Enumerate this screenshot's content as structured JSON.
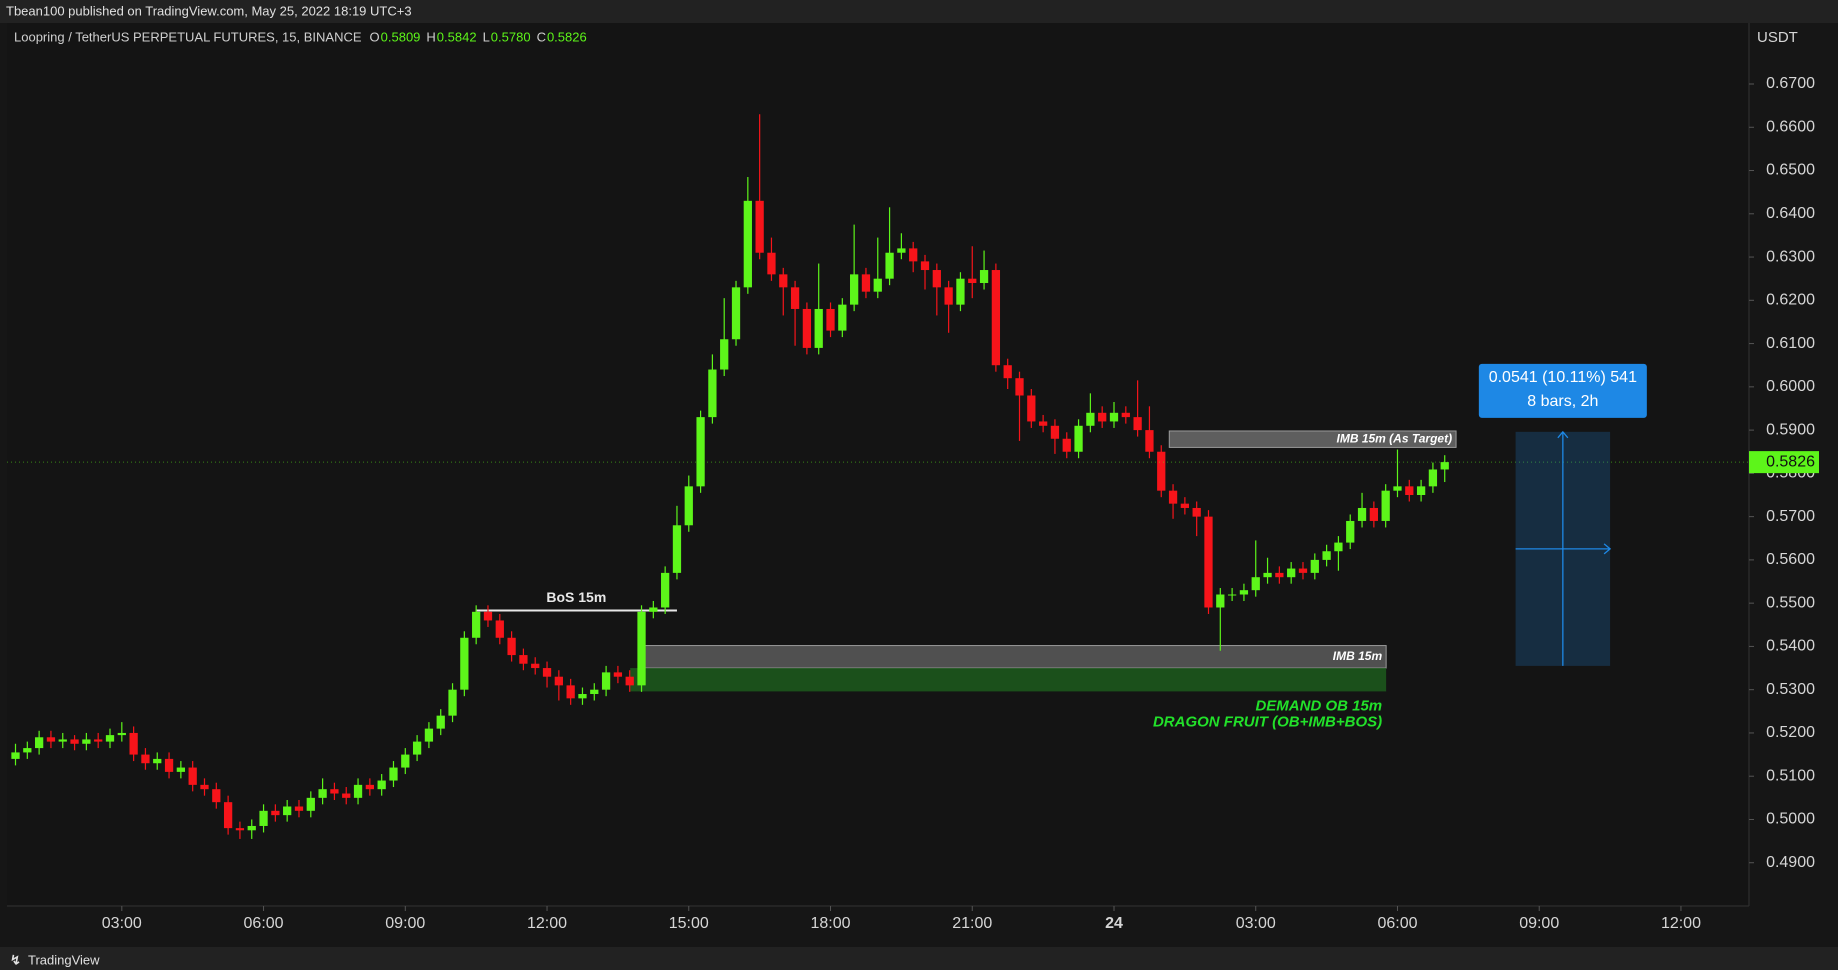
{
  "header": {
    "publish": "Tbean100 published on TradingView.com, May 25, 2022 18:19 UTC+3",
    "symbol": "Loopring / TetherUS PERPETUAL FUTURES, 15, BINANCE",
    "ohlc": [
      {
        "key": "O",
        "value": "0.5809"
      },
      {
        "key": "H",
        "value": "0.5842"
      },
      {
        "key": "L",
        "value": "0.5780"
      },
      {
        "key": "C",
        "value": "0.5826"
      }
    ]
  },
  "footer": {
    "brand": "TradingView"
  },
  "chart_data": {
    "type": "candlestick",
    "y_label": "USDT",
    "up_color": "#5df51a",
    "down_color": "#f7141a",
    "xlim": [
      0.57,
      37.44
    ],
    "ylim": [
      0.48,
      0.6841
    ],
    "xticks": [
      {
        "value": 3,
        "label": "03:00"
      },
      {
        "value": 6,
        "label": "06:00"
      },
      {
        "value": 9,
        "label": "09:00"
      },
      {
        "value": 12,
        "label": "12:00"
      },
      {
        "value": 15,
        "label": "15:00"
      },
      {
        "value": 18,
        "label": "18:00"
      },
      {
        "value": 21,
        "label": "21:00"
      },
      24,
      {
        "value": 27,
        "label": "03:00"
      },
      {
        "value": 30,
        "label": "06:00"
      },
      {
        "value": 33,
        "label": "09:00"
      },
      {
        "value": 36,
        "label": "12:00"
      }
    ],
    "yticks": [
      {
        "value": 0.49,
        "label": "0.4900"
      },
      {
        "value": 0.5,
        "label": "0.5000"
      },
      {
        "value": 0.51,
        "label": "0.5100"
      },
      {
        "value": 0.52,
        "label": "0.5200"
      },
      {
        "value": 0.53,
        "label": "0.5300"
      },
      {
        "value": 0.54,
        "label": "0.5400"
      },
      {
        "value": 0.55,
        "label": "0.5500"
      },
      {
        "value": 0.56,
        "label": "0.5600"
      },
      {
        "value": 0.57,
        "label": "0.5700"
      },
      {
        "value": 0.58,
        "label": "0.5800"
      },
      {
        "value": 0.59,
        "label": "0.5900"
      },
      {
        "value": 0.6,
        "label": "0.6000"
      },
      {
        "value": 0.61,
        "label": "0.6100"
      },
      {
        "value": 0.62,
        "label": "0.6200"
      },
      {
        "value": 0.63,
        "label": "0.6300"
      },
      {
        "value": 0.64,
        "label": "0.6400"
      },
      {
        "value": 0.65,
        "label": "0.6500"
      },
      {
        "value": 0.66,
        "label": "0.6600"
      },
      {
        "value": 0.67,
        "label": "0.6700"
      }
    ],
    "x": [
      0.75,
      1,
      1.25,
      1.5,
      1.75,
      2,
      2.25,
      2.5,
      2.75,
      3,
      3.25,
      3.5,
      3.75,
      4,
      4.25,
      4.5,
      4.75,
      5,
      5.25,
      5.5,
      5.75,
      6,
      6.25,
      6.5,
      6.75,
      7,
      7.25,
      7.5,
      7.75,
      8,
      8.25,
      8.5,
      8.75,
      9,
      9.25,
      9.5,
      9.75,
      10,
      10.25,
      10.5,
      10.75,
      11,
      11.25,
      11.5,
      11.75,
      12,
      12.25,
      12.5,
      12.75,
      13,
      13.25,
      13.5,
      13.75,
      14,
      14.25,
      14.5,
      14.75,
      15,
      15.25,
      15.5,
      15.75,
      16,
      16.25,
      16.5,
      16.75,
      17,
      17.25,
      17.5,
      17.75,
      18,
      18.25,
      18.5,
      18.75,
      19,
      19.25,
      19.5,
      19.75,
      20,
      20.25,
      20.5,
      20.75,
      21,
      21.25,
      21.5,
      21.75,
      22,
      22.25,
      22.5,
      22.75,
      23,
      23.25,
      23.5,
      23.75,
      24,
      24.25,
      24.5,
      24.75,
      25,
      25.25,
      25.5,
      25.75,
      26,
      26.25,
      26.5,
      26.75,
      27,
      27.25,
      27.5,
      27.75,
      28,
      28.25,
      28.5,
      28.75,
      29,
      29.25,
      29.5,
      29.75,
      30,
      30.25,
      30.5,
      30.75,
      31
    ],
    "open": [
      0.514,
      0.5155,
      0.5165,
      0.519,
      0.518,
      0.5185,
      0.5175,
      0.5185,
      0.518,
      0.5195,
      0.52,
      0.515,
      0.513,
      0.514,
      0.511,
      0.512,
      0.508,
      0.507,
      0.504,
      0.498,
      0.4975,
      0.4985,
      0.502,
      0.501,
      0.503,
      0.502,
      0.505,
      0.507,
      0.506,
      0.505,
      0.508,
      0.507,
      0.509,
      0.512,
      0.515,
      0.518,
      0.521,
      0.524,
      0.53,
      0.542,
      0.548,
      0.546,
      0.542,
      0.538,
      0.536,
      0.535,
      0.533,
      0.531,
      0.528,
      0.529,
      0.53,
      0.534,
      0.533,
      0.531,
      0.548,
      0.549,
      0.557,
      0.568,
      0.577,
      0.593,
      0.604,
      0.611,
      0.623,
      0.643,
      0.631,
      0.626,
      0.623,
      0.618,
      0.609,
      0.618,
      0.613,
      0.619,
      0.626,
      0.622,
      0.625,
      0.631,
      0.632,
      0.629,
      0.627,
      0.623,
      0.619,
      0.625,
      0.624,
      0.627,
      0.605,
      0.602,
      0.598,
      0.592,
      0.591,
      0.588,
      0.585,
      0.591,
      0.594,
      0.592,
      0.594,
      0.593,
      0.59,
      0.585,
      0.576,
      0.573,
      0.572,
      0.57,
      0.549,
      0.552,
      0.552,
      0.553,
      0.556,
      0.557,
      0.556,
      0.558,
      0.557,
      0.56,
      0.562,
      0.564,
      0.569,
      0.572,
      0.569,
      0.576,
      0.577,
      0.575,
      0.577,
      0.5809
    ],
    "high": [
      0.5175,
      0.518,
      0.5205,
      0.5205,
      0.52,
      0.5195,
      0.52,
      0.52,
      0.521,
      0.5225,
      0.5215,
      0.5165,
      0.5155,
      0.5155,
      0.5135,
      0.5135,
      0.5095,
      0.5085,
      0.5055,
      0.4995,
      0.5,
      0.5035,
      0.5035,
      0.5045,
      0.5045,
      0.5065,
      0.5095,
      0.5085,
      0.5075,
      0.5095,
      0.5095,
      0.5105,
      0.5135,
      0.5165,
      0.5195,
      0.5225,
      0.5255,
      0.5315,
      0.5435,
      0.5495,
      0.5495,
      0.5475,
      0.5435,
      0.5395,
      0.5375,
      0.5365,
      0.5345,
      0.5325,
      0.5305,
      0.5315,
      0.5355,
      0.5355,
      0.5345,
      0.5495,
      0.5505,
      0.5585,
      0.5725,
      0.5795,
      0.5945,
      0.6075,
      0.6205,
      0.6245,
      0.6485,
      0.663,
      0.6345,
      0.6275,
      0.6245,
      0.6195,
      0.6285,
      0.6195,
      0.6205,
      0.6375,
      0.6275,
      0.6345,
      0.6415,
      0.6355,
      0.6335,
      0.6305,
      0.6285,
      0.6245,
      0.6265,
      0.6325,
      0.6315,
      0.6285,
      0.6065,
      0.6035,
      0.5995,
      0.5935,
      0.5925,
      0.5895,
      0.5925,
      0.5985,
      0.5955,
      0.5965,
      0.5955,
      0.6015,
      0.5955,
      0.5865,
      0.5775,
      0.5745,
      0.5735,
      0.5715,
      0.5535,
      0.5535,
      0.5545,
      0.5645,
      0.5605,
      0.5585,
      0.5595,
      0.5595,
      0.5615,
      0.5635,
      0.5655,
      0.5705,
      0.5755,
      0.5735,
      0.5775,
      0.5855,
      0.5785,
      0.5785,
      0.5825,
      0.5842
    ],
    "low": [
      0.5125,
      0.514,
      0.515,
      0.5165,
      0.5165,
      0.516,
      0.516,
      0.5165,
      0.5165,
      0.518,
      0.5135,
      0.5115,
      0.5115,
      0.5095,
      0.5095,
      0.5065,
      0.5055,
      0.5025,
      0.4965,
      0.4955,
      0.4955,
      0.497,
      0.4995,
      0.4995,
      0.5005,
      0.5005,
      0.5035,
      0.5045,
      0.5035,
      0.5035,
      0.5055,
      0.5055,
      0.5075,
      0.5105,
      0.5135,
      0.5165,
      0.5195,
      0.5225,
      0.5285,
      0.5405,
      0.5445,
      0.5405,
      0.5365,
      0.5345,
      0.5335,
      0.5305,
      0.5275,
      0.5265,
      0.5265,
      0.5275,
      0.5285,
      0.5315,
      0.5295,
      0.5295,
      0.5465,
      0.5475,
      0.5555,
      0.5665,
      0.5755,
      0.5915,
      0.6025,
      0.6095,
      0.6215,
      0.6295,
      0.6245,
      0.6165,
      0.6095,
      0.6075,
      0.6075,
      0.6115,
      0.6115,
      0.6175,
      0.6205,
      0.6205,
      0.6235,
      0.6295,
      0.6265,
      0.6225,
      0.6165,
      0.6125,
      0.6175,
      0.6205,
      0.6225,
      0.6035,
      0.5995,
      0.5875,
      0.5905,
      0.5895,
      0.5845,
      0.5835,
      0.5835,
      0.5895,
      0.5905,
      0.5905,
      0.5915,
      0.5885,
      0.5835,
      0.5745,
      0.5695,
      0.5705,
      0.5655,
      0.5475,
      0.539,
      0.5505,
      0.5505,
      0.5515,
      0.5545,
      0.5545,
      0.5545,
      0.5555,
      0.5555,
      0.5585,
      0.5575,
      0.5625,
      0.5675,
      0.5675,
      0.5675,
      0.5745,
      0.5735,
      0.5735,
      0.5755,
      0.578
    ],
    "close": [
      0.5155,
      0.5165,
      0.519,
      0.518,
      0.5185,
      0.5175,
      0.5185,
      0.518,
      0.5195,
      0.52,
      0.515,
      0.513,
      0.514,
      0.511,
      0.512,
      0.508,
      0.507,
      0.504,
      0.498,
      0.4975,
      0.4985,
      0.502,
      0.501,
      0.503,
      0.502,
      0.505,
      0.507,
      0.506,
      0.505,
      0.508,
      0.507,
      0.509,
      0.512,
      0.515,
      0.518,
      0.521,
      0.524,
      0.53,
      0.542,
      0.548,
      0.546,
      0.542,
      0.538,
      0.536,
      0.535,
      0.533,
      0.531,
      0.528,
      0.529,
      0.53,
      0.534,
      0.533,
      0.531,
      0.548,
      0.549,
      0.557,
      0.568,
      0.577,
      0.593,
      0.604,
      0.611,
      0.623,
      0.643,
      0.631,
      0.626,
      0.623,
      0.618,
      0.609,
      0.618,
      0.613,
      0.619,
      0.626,
      0.622,
      0.625,
      0.631,
      0.632,
      0.629,
      0.627,
      0.623,
      0.619,
      0.625,
      0.624,
      0.627,
      0.605,
      0.602,
      0.598,
      0.592,
      0.591,
      0.588,
      0.585,
      0.591,
      0.594,
      0.592,
      0.594,
      0.593,
      0.59,
      0.585,
      0.576,
      0.573,
      0.572,
      0.57,
      0.549,
      0.552,
      0.552,
      0.553,
      0.556,
      0.557,
      0.556,
      0.558,
      0.557,
      0.56,
      0.562,
      0.564,
      0.569,
      0.572,
      0.569,
      0.576,
      0.577,
      0.575,
      0.577,
      0.5809,
      0.5826
    ],
    "bos": {
      "label": "BoS 15m",
      "x": [
        10.49,
        14.75
      ],
      "y": 0.5483
    },
    "zones": [
      {
        "label": [
          "IMB 15m (As Target)"
        ],
        "x": [
          25.17,
          31.24
        ],
        "y": [
          0.586,
          0.5898
        ],
        "color": "#6b6b6b",
        "label_position": "inside"
      },
      {
        "label": [
          "IMB 15m"
        ],
        "x": [
          14.0,
          29.76
        ],
        "y": [
          0.535,
          0.5402
        ],
        "color": "#5a5a5a",
        "label_position": "inside"
      },
      {
        "label": [
          "DEMAND OB 15m",
          "DRAGON FRUIT (OB+IMB+BOS)"
        ],
        "x": [
          13.76,
          29.76
        ],
        "y": [
          0.5296,
          0.535
        ],
        "color": "#1c5a1c",
        "label_color": "#22e12a",
        "label_position": "below"
      }
    ],
    "measure": {
      "label": [
        "0.0541 (10.11%) 541",
        "8 bars, 2h"
      ],
      "x": [
        32.5,
        34.5
      ],
      "y": [
        0.5355,
        0.5896
      ],
      "color": "#1e88e5"
    }
  }
}
